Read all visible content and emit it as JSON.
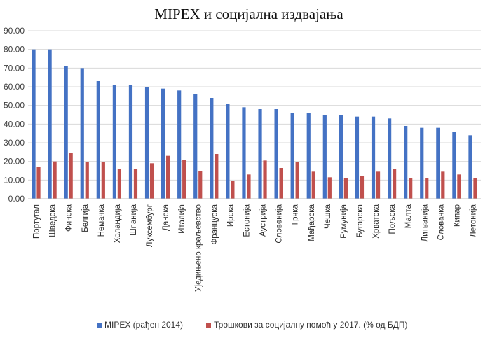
{
  "chart_data": {
    "type": "bar",
    "title": "MIPEX и социјална издвајања",
    "categories": [
      "Португал",
      "Шведска",
      "Финска",
      "Белгија",
      "Немачка",
      "Холандија",
      "Шпанија",
      "Луксембург",
      "Данска",
      "Италија",
      "Уједињено краљевство",
      "Француска",
      "Ирска",
      "Естонија",
      "Аустрија",
      "Словенија",
      "Грчка",
      "Мађарска",
      "Чешка",
      "Румунија",
      "Бугарска",
      "Хрватска",
      "Пољска",
      "Малта",
      "Литванија",
      "Словачка",
      "Кипар",
      "Летонија"
    ],
    "series": [
      {
        "name": "MIPEX (рађен 2014)",
        "color": "#4472c4",
        "values": [
          80,
          80,
          71,
          70,
          63,
          61,
          61,
          60,
          59,
          58,
          56,
          54,
          51,
          49,
          48,
          48,
          46,
          46,
          45,
          45,
          44,
          44,
          43,
          39,
          38,
          38,
          36,
          34
        ]
      },
      {
        "name": "Трошкови за социјалну помоћ у 2017. (% од БДП)",
        "color": "#c0504d",
        "values": [
          17,
          20,
          24.5,
          19.5,
          19.5,
          16,
          16,
          19,
          23,
          21,
          15,
          24,
          9.5,
          13,
          20.5,
          16.5,
          19.5,
          14.5,
          11.5,
          11,
          12,
          14.5,
          16,
          11,
          11,
          14.5,
          13,
          11
        ]
      }
    ],
    "ylim": [
      0,
      90
    ],
    "yticks": [
      "0.00",
      "10.00",
      "20.00",
      "30.00",
      "40.00",
      "50.00",
      "60.00",
      "70.00",
      "80.00",
      "90.00"
    ],
    "grid": true,
    "legend": "bottom"
  }
}
